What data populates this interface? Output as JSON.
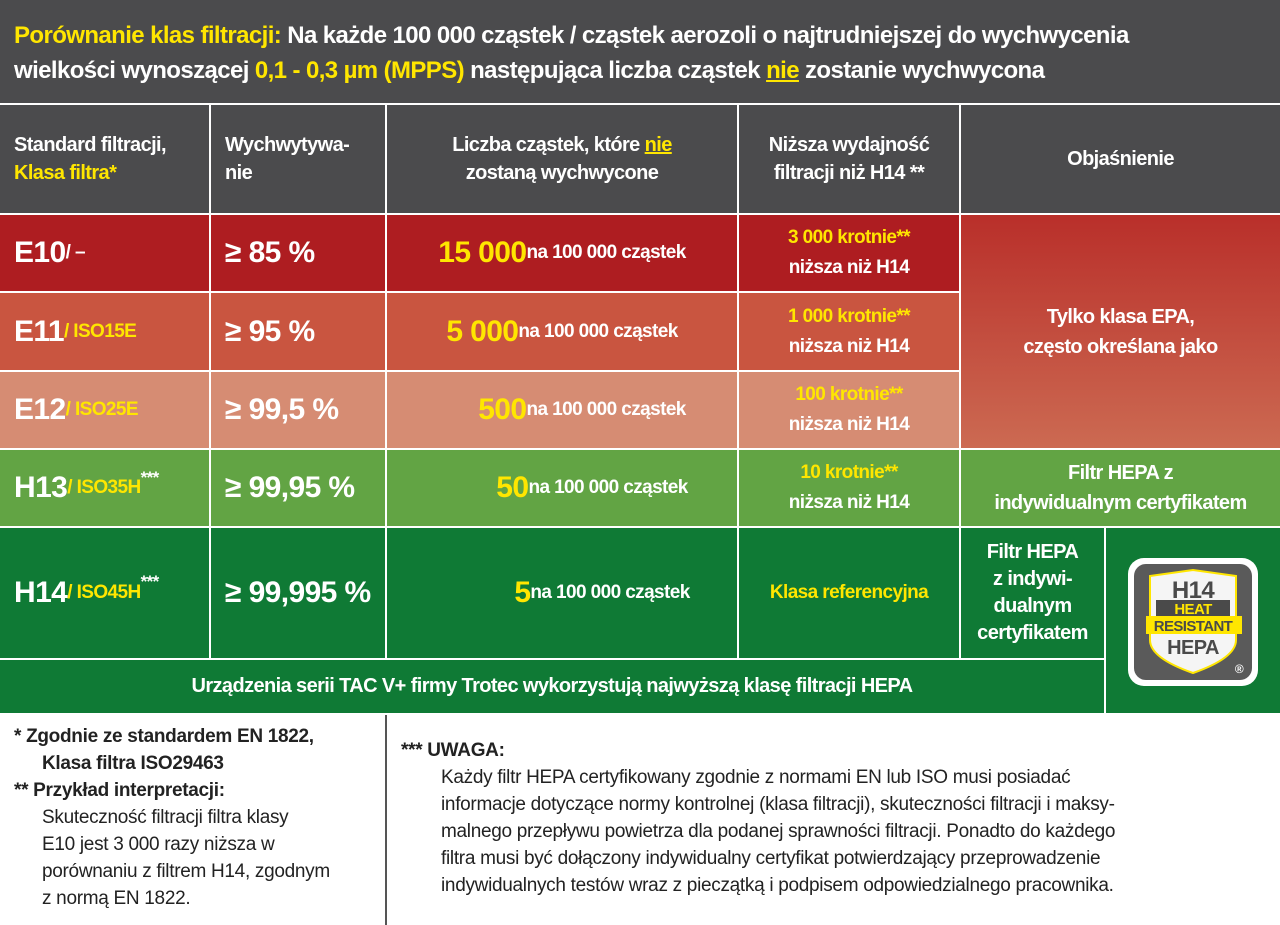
{
  "title": {
    "prefix": "Porównanie klas filtracji:",
    "line1": " Na każde 100 000 cząstek / cząstek aerozoli o najtrudniejszej do wychwycenia",
    "line2a": "wielkości wynoszącej ",
    "range": "0,1 - 0,3 µm (MPPS)",
    "line2b": " następująca liczba cząstek ",
    "nie": "nie",
    "line2c": " zostanie wychwycona"
  },
  "header": {
    "col1a": "Standard filtracji,",
    "col1b": "Klasa filtra*",
    "col2a": "Wychwytywa-",
    "col2b": "nie",
    "col3a": "Liczba cząstek, które ",
    "col3nie": "nie",
    "col3b": "zostaną wychwycone",
    "col4a": "Niższa wydajność",
    "col4b": "filtracji niż H14 **",
    "col5": "Objaśnienie"
  },
  "rows": [
    {
      "cls": "E10",
      "iso": " / –",
      "capture": "≥ 85 %",
      "count": "15 000",
      "per": " na 100 000 cząstek",
      "lower1": "3 000 krotnie**",
      "lower2": "niższa niż H14"
    },
    {
      "cls": "E11",
      "iso": " / ISO15E",
      "capture": "≥ 95 %",
      "count": "5 000",
      "per": " na 100 000 cząstek",
      "lower1": "1 000 krotnie**",
      "lower2": "niższa niż H14"
    },
    {
      "cls": "E12",
      "iso": " / ISO25E",
      "capture": "≥ 99,5 %",
      "count": "500",
      "per": " na 100 000 cząstek",
      "lower1": "100 krotnie**",
      "lower2": "niższa niż H14"
    },
    {
      "cls": "H13",
      "iso": " / ISO35H",
      "stars": "***",
      "capture": "≥ 99,95 %",
      "count": "50",
      "per": " na 100 000 cząstek",
      "lower1": "10 krotnie**",
      "lower2": "niższa niż H14"
    },
    {
      "cls": "H14",
      "iso": " / ISO45H",
      "stars": "***",
      "capture": "≥ 99,995 %",
      "count": "5",
      "per": " na 100 000 cząstek",
      "lower1": "Klasa referencyjna"
    }
  ],
  "explanations": {
    "epa1": "Tylko klasa EPA,",
    "epa2": "często określana jako",
    "h13a": "Filtr HEPA z",
    "h13b": "indywidualnym certyfikatem",
    "h14a": "Filtr HEPA",
    "h14b": "z indywi-",
    "h14c": "dualnym",
    "h14d": "certyfikatem"
  },
  "badge": {
    "l1": "H14",
    "l2": "HEAT",
    "l3": "RESISTANT",
    "l4": "HEPA",
    "reg": "®"
  },
  "footer_bar": "Urządzenia serii TAC V+ firmy Trotec wykorzystują najwyższą klasę filtracji HEPA",
  "notes_left": {
    "n1a": "* Zgodnie ze standardem EN 1822,",
    "n1b": "Klasa filtra ISO29463",
    "n2": "** Przykład interpretacji:",
    "t1": "Skuteczność filtracji filtra klasy",
    "t2": "E10 jest 3 000 razy niższa w",
    "t3": "porównaniu z filtrem H14, zgodnym",
    "t4": "z normą EN 1822."
  },
  "notes_right": {
    "head": "*** UWAGA:",
    "lines": [
      "Każdy filtr HEPA certyfikowany zgodnie z normami EN lub ISO musi posiadać",
      "informacje dotyczące normy kontrolnej (klasa filtracji), skuteczności filtracji i maksy-",
      "malnego przepływu powietrza dla podanej sprawności filtracji. Ponadto do każdego",
      "filtra musi być dołączony indywidualny certyfikat potwierdzający przeprowadzenie",
      "indywidualnych testów wraz z pieczątką i podpisem odpowiedzialnego pracownika."
    ]
  },
  "colors": {
    "header": "#4b4b4d",
    "e10": "#ae1d21",
    "e11": "#c95540",
    "e12": "#d68c73",
    "h13": "#62a444",
    "h14": "#0f7a35",
    "accent": "#ffe600"
  }
}
